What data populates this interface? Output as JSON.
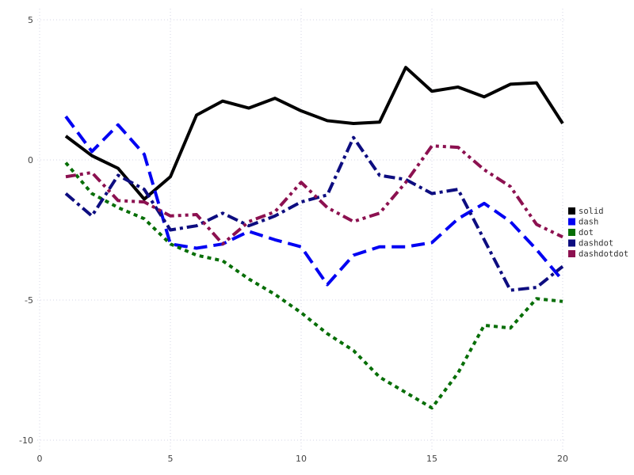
{
  "chart_data": {
    "type": "line",
    "title": "",
    "xlabel": "",
    "ylabel": "",
    "xlim": [
      0,
      20.6
    ],
    "ylim": [
      -10.3,
      5.3
    ],
    "xticks": [
      0,
      5,
      10,
      15,
      20
    ],
    "xtick_labels": [
      "0",
      "5",
      "10",
      "15",
      "20"
    ],
    "yticks": [
      5,
      0,
      -5,
      -10
    ],
    "ytick_labels": [
      "5",
      "0",
      "-5",
      "-10"
    ],
    "grid": true,
    "grid_style": "dotted",
    "legend_position": "center-right",
    "x": [
      1,
      2,
      3,
      4,
      5,
      6,
      7,
      8,
      9,
      10,
      11,
      12,
      13,
      14,
      15,
      16,
      17,
      18,
      19,
      20
    ],
    "series": [
      {
        "name": "solid",
        "color": "#000000",
        "linestyle": "solid",
        "values": [
          0.85,
          0.15,
          -0.3,
          -1.4,
          -0.6,
          1.6,
          2.1,
          1.85,
          2.2,
          1.75,
          1.4,
          1.3,
          1.35,
          3.3,
          2.45,
          2.6,
          2.25,
          2.7,
          2.75,
          1.3
        ]
      },
      {
        "name": "dash",
        "color": "#0202f2",
        "linestyle": "dash",
        "values": [
          1.55,
          0.3,
          1.25,
          0.2,
          -3.0,
          -3.15,
          -3.0,
          -2.55,
          -2.85,
          -3.1,
          -4.45,
          -3.4,
          -3.1,
          -3.1,
          -2.95,
          -2.1,
          -1.55,
          -2.2,
          -3.2,
          -4.3
        ]
      },
      {
        "name": "dot",
        "color": "#076e07",
        "linestyle": "dot",
        "values": [
          -0.1,
          -1.2,
          -1.7,
          -2.1,
          -3.0,
          -3.4,
          -3.6,
          -4.25,
          -4.8,
          -5.45,
          -6.2,
          -6.8,
          -7.75,
          -8.3,
          -8.85,
          -7.6,
          -5.9,
          -6.0,
          -4.95,
          -5.05
        ]
      },
      {
        "name": "dashdot",
        "color": "#0d0d80",
        "linestyle": "dashdot",
        "values": [
          -1.2,
          -2.0,
          -0.55,
          -1.05,
          -2.5,
          -2.35,
          -1.9,
          -2.35,
          -2.0,
          -1.5,
          -1.25,
          0.8,
          -0.55,
          -0.7,
          -1.2,
          -1.05,
          -2.85,
          -4.65,
          -4.55,
          -3.8
        ]
      },
      {
        "name": "dashdotdot",
        "color": "#8c1150",
        "linestyle": "dashdotdot",
        "values": [
          -0.6,
          -0.45,
          -1.45,
          -1.5,
          -2.0,
          -1.95,
          -3.0,
          -2.2,
          -1.85,
          -0.8,
          -1.7,
          -2.2,
          -1.9,
          -0.8,
          0.5,
          0.45,
          -0.35,
          -0.95,
          -2.3,
          -2.75
        ]
      }
    ]
  }
}
